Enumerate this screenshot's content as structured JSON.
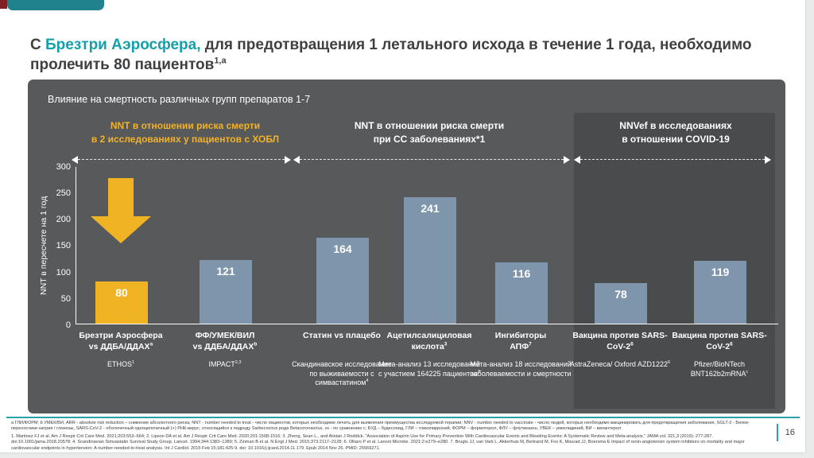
{
  "header": {
    "title_prefix": "С ",
    "title_brand": "Брезтри Аэросфера,",
    "title_rest": " для предотвращения 1 летального исхода в течение 1 года, необходимо пролечить 80 пациентов",
    "title_sup": "1,a"
  },
  "colors": {
    "teal_accent": "#20828C",
    "title_brand_teal": "#14A0AA",
    "panel_gray": "#58595B",
    "covid_section_gray": "#4A4B4D",
    "bar_yellow": "#F0B323",
    "bar_blue_gray": "#7E95AC",
    "corner_red": "#7E2127"
  },
  "chart_data": {
    "type": "bar",
    "title": "Влияние на смертность различных групп препаратов 1-7",
    "ylabel": "NNT в пересчете на 1 год",
    "ylim": [
      0,
      300
    ],
    "yticks": [
      "300",
      "250",
      "200",
      "150",
      "100",
      "50",
      "0"
    ],
    "grid": false,
    "legend_position": "none",
    "group_headers": [
      {
        "line1": "NNT в отношении риска смерти",
        "line2": "в 2 исследованиях у пациентов с ХОБЛ",
        "color": "#F2B229"
      },
      {
        "line1": "NNT в отношении риска смерти",
        "line2": "при СС заболеваниях*1",
        "color": "#FFFFFF"
      },
      {
        "line1": "NNVef в исследованиях",
        "line2": "в отношении COVID-19",
        "color": "#FFFFFF"
      }
    ],
    "values": [
      80,
      121,
      164,
      241,
      116,
      78,
      119
    ],
    "bar_colors": [
      "#F0B323",
      "#7E95AC",
      "#7E95AC",
      "#7E95AC",
      "#7E95AC",
      "#7E95AC",
      "#7E95AC"
    ],
    "categories": [
      {
        "line1": "Брезтри Аэросфера",
        "line2": "vs ДДБА/ДДАХ",
        "line2_sup": "a",
        "study": "ETHOS",
        "study_sup": "1"
      },
      {
        "line1": "ФФ/УМЕК/ВИЛ",
        "line2": "vs ДДБА/ДДАХ",
        "line2_sup": "b",
        "study": "IMPACT",
        "study_sup": "2,3"
      },
      {
        "line1": "Статин vs плацебо",
        "line2": "",
        "line2_sup": "",
        "study": "Скандинавское исследование по выживаемости с симвастатином",
        "study_sup": "4"
      },
      {
        "line1": "Ацетилсалициловая",
        "line2": "кислота",
        "line2_sup": "3",
        "study": "Мета-анализ 13 исследований с участием 164225 пациентов",
        "study_sup": "3"
      },
      {
        "line1": "Ингибиторы",
        "line2": "АПФ",
        "line2_sup": "7",
        "study": "Мета-анализ 18 исследований заболеваемости и смертности",
        "study_sup": ""
      },
      {
        "line1": "Вакцина против SARS-",
        "line2": "CoV-2",
        "line2_sup": "6",
        "study": "AstraZeneca/ Oxford AZD1222",
        "study_sup": "6"
      },
      {
        "line1": "Вакцина против SARS-",
        "line2": "CoV-2",
        "line2_sup": "6",
        "study": "Pfizer/BioNTech BNT162b2mRNA",
        "study_sup": "c"
      }
    ]
  },
  "footnotes": {
    "abbreviations": "a ГЛИ/ФОРМ; b УМЕК/ВИ, ARR - absolute risk reduction – снижение абсолютного риска; NNT - number needed to treat - число пациентов, которых необходимо лечить для выявления преимущества исследуемой терапии; NNV - number needed to vaccinate - число людей, которых необходимо вакцинировать для предотвращения заболевания, SGLT-2 - Белки-переносчики натрия / глюкозы, SARS-CoV-2 - оболочечный одноцепочечный (+) РНК-вирус, относящийся к подроду Sarbecovirus рода Betacoronavirus, vs - по сравнению с; БУД – будесонид, ГЛИ – гликопирроний, ФОРМ – формотерол, ФЛУ – флутиказон, УВЕК – умеклидиний, ВИ – вилантерол",
    "references": "1. Martinez FJ et al. Am J Respir Crit Care Med. 2021;203:553–664; 2. Lipson DA et al. Am J Respir Crit Care Med. 2020;201:1508-1516; 3. Zheng, Sean L., and Alistair J Roddick. \"Association of Aspirin Use for Primary Prevention With Cardiovascular Events and Bleeding Events: A Systematic Review and Meta-analysis.\" JAMA vol. 321,3 (2019): 277-287. doi:10.1001/jama.2018.20578; 4. Scandinavian Simvastatin Survival Study Group. Lancet. 1994;344:1383–1389; 5. Zinman B et al. N Engl J Med. 2015;373:2117–2128; 6. Olliaro P et al. Lancet Microbe. 2021;2:e279–e280. 7. Brugts JJ, van Vark L, Akkerhuis M, Bertrand M, Fox K, Mourad JJ, Boersma E Impact of renin-angiotensin system inhibitors on mortality and major cardiovascular endpoints in hypertension: A number-needed-to-treat analysis. Int J Cardiol. 2015 Feb 15;181:425-9. doi: 10.1016/j.ijcard.2014.11.179. Epub 2014 Nov 26. PMID: 25569271."
  },
  "page_number": "16"
}
